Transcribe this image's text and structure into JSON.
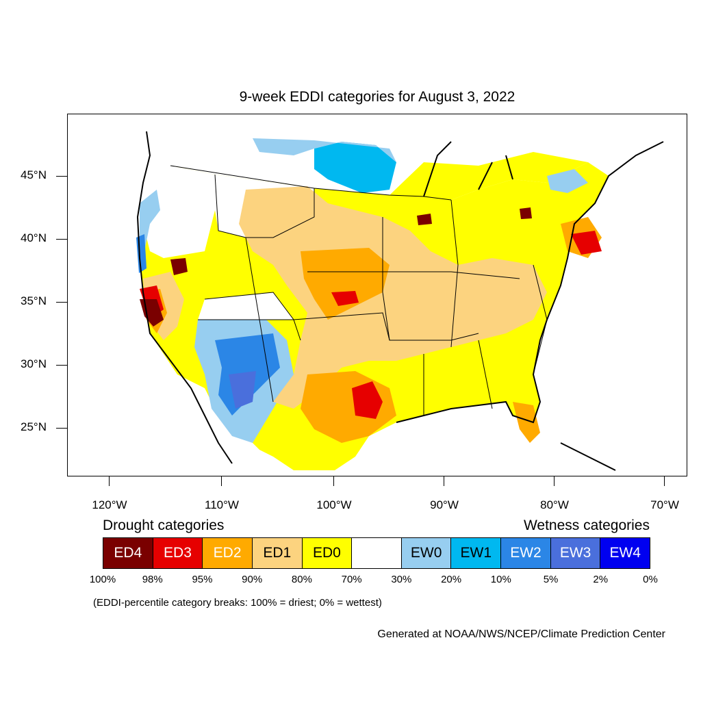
{
  "title": "9-week EDDI categories for August 3, 2022",
  "lat_labels": [
    "45°N",
    "40°N",
    "35°N",
    "30°N",
    "25°N"
  ],
  "lon_labels": [
    "120°W",
    "110°W",
    "100°W",
    "90°W",
    "80°W",
    "70°W"
  ],
  "legend": {
    "drought_title": "Drought categories",
    "wetness_title": "Wetness categories",
    "categories": [
      {
        "label": "ED4",
        "color": "#7a0000",
        "text_color": "#ffffff"
      },
      {
        "label": "ED3",
        "color": "#e60000",
        "text_color": "#ffffff"
      },
      {
        "label": "ED2",
        "color": "#ffaa00",
        "text_color": "#ffffff"
      },
      {
        "label": "ED1",
        "color": "#fcd37f",
        "text_color": "#000000"
      },
      {
        "label": "ED0",
        "color": "#ffff00",
        "text_color": "#000000"
      },
      {
        "label": "",
        "color": "#ffffff",
        "text_color": "#000000"
      },
      {
        "label": "EW0",
        "color": "#97cef0",
        "text_color": "#000000"
      },
      {
        "label": "EW1",
        "color": "#00b8f0",
        "text_color": "#000000"
      },
      {
        "label": "EW2",
        "color": "#2b86e6",
        "text_color": "#ffffff"
      },
      {
        "label": "EW3",
        "color": "#4a6fdc",
        "text_color": "#ffffff"
      },
      {
        "label": "EW4",
        "color": "#0000f0",
        "text_color": "#ffffff"
      }
    ],
    "percent_breaks": [
      "100%",
      "98%",
      "95%",
      "90%",
      "80%",
      "70%",
      "30%",
      "20%",
      "10%",
      "5%",
      "2%",
      "0%"
    ]
  },
  "footnote": "(EDDI-percentile category breaks: 100% = driest; 0% = wettest)",
  "credit": "Generated at NOAA/NWS/NCEP/Climate Prediction Center"
}
